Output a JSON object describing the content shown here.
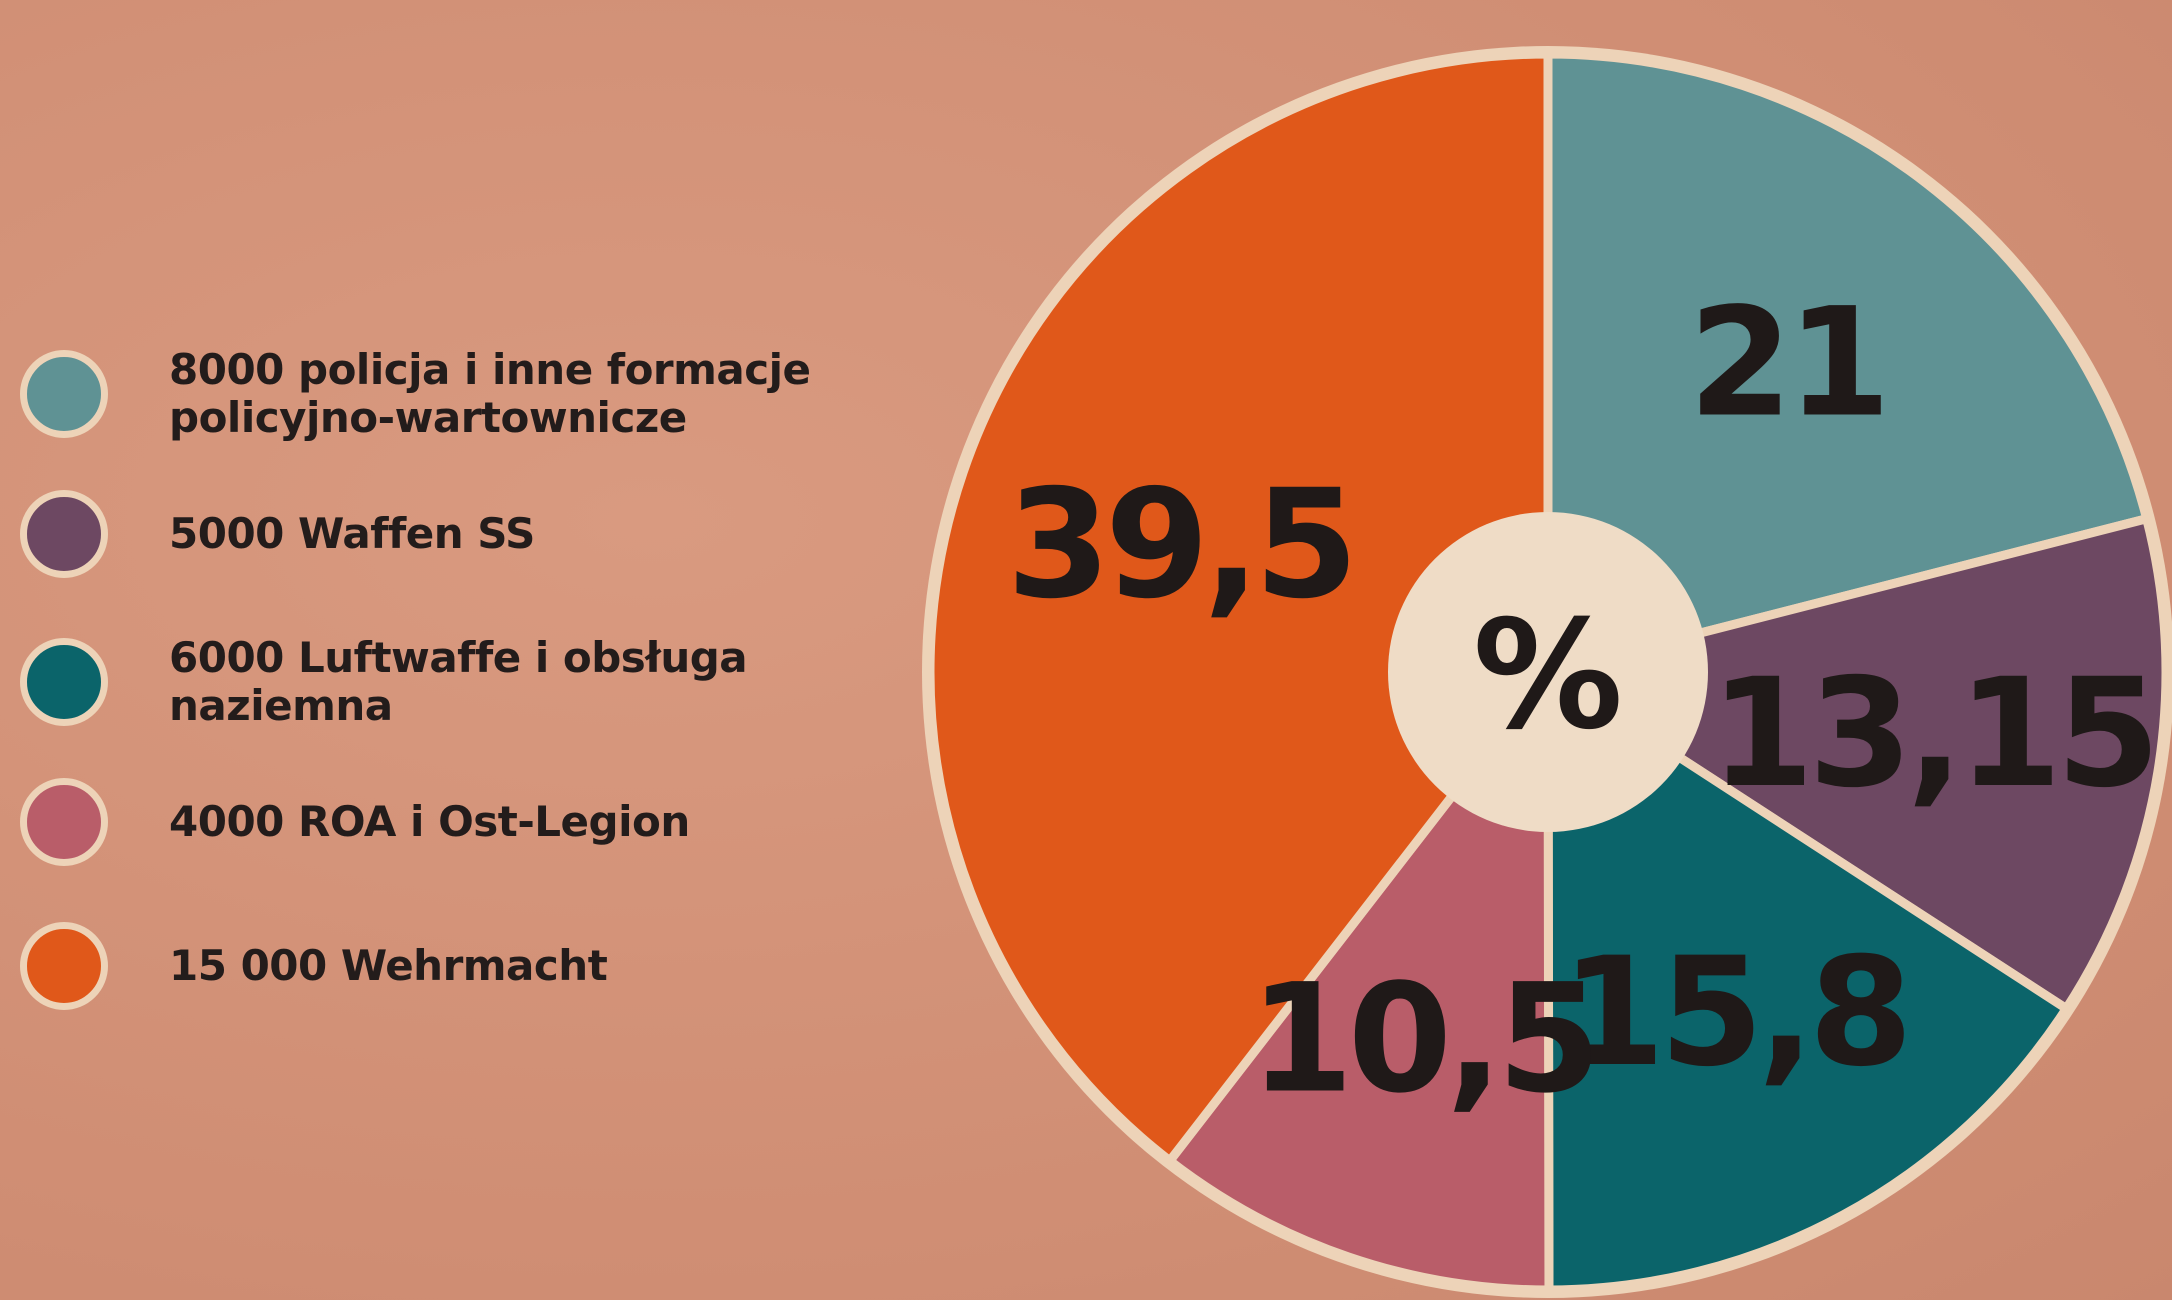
{
  "chart_data": {
    "type": "pie",
    "categories": [
      "8000 policja i inne formacje policyjno-wartownicze",
      "5000 Waffen SS",
      "6000 Luftwaffe i obsługa naziemna",
      "4000 ROA i Ost-Legion",
      "15 000 Wehrmacht"
    ],
    "values": [
      21,
      13.15,
      15.8,
      10.5,
      39.5
    ],
    "value_labels": [
      "21",
      "13,15",
      "15,8",
      "10,5",
      "39,5"
    ],
    "colors": [
      "#5f9294",
      "#6d4862",
      "#0b646a",
      "#b95d69",
      "#e0581a"
    ],
    "center_label": "%"
  }
}
